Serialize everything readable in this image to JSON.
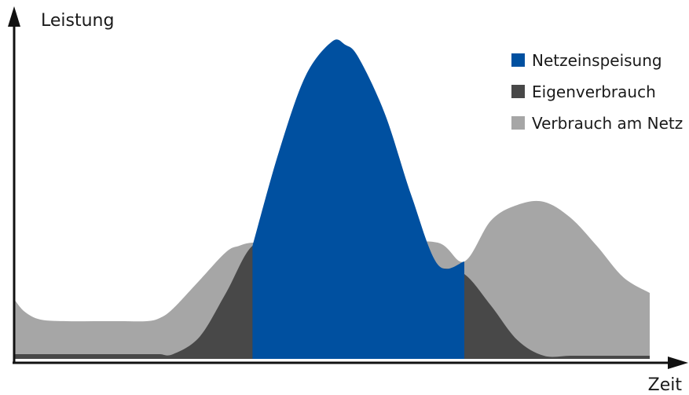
{
  "chart_data": {
    "type": "area",
    "xlabel": "Zeit",
    "ylabel": "Leistung",
    "xlim": [
      0,
      24
    ],
    "ylim": [
      0,
      100
    ],
    "grid": false,
    "legend_position": "top-right",
    "tick_labels": false,
    "series": [
      {
        "name": "Netzeinspeisung",
        "color": "#0050a0",
        "x": [
          9.0,
          10.0,
          11.0,
          12.0,
          12.5,
          13.0,
          14.0,
          15.0,
          16.0,
          17.0
        ],
        "y": [
          36,
          66,
          90,
          101,
          100,
          96,
          78,
          52,
          30,
          31
        ]
      },
      {
        "name": "Eigenverbrauch",
        "color": "#484848",
        "x": [
          0,
          1,
          2,
          3,
          4,
          5,
          5.5,
          6,
          7,
          8,
          9,
          10,
          11,
          12,
          12.5,
          13,
          14,
          15,
          16,
          17,
          18,
          19,
          20,
          21,
          22,
          23,
          24
        ],
        "y": [
          1.5,
          1.5,
          1.5,
          1.5,
          1.5,
          1.5,
          1.5,
          1.5,
          7,
          21,
          36,
          35,
          35,
          36,
          36,
          35,
          32,
          30,
          29,
          27,
          17,
          6,
          1,
          1,
          1,
          1,
          1
        ]
      },
      {
        "name": "Verbrauch am Netz",
        "color": "#a6a6a6",
        "x": [
          0,
          0.4,
          1,
          2,
          3,
          4,
          5,
          5.5,
          6,
          7,
          8,
          8.5,
          9,
          10,
          12,
          14,
          16,
          17,
          18,
          19,
          20,
          21,
          22,
          23,
          24
        ],
        "y": [
          19,
          15,
          12.5,
          12,
          12,
          12,
          12,
          13,
          16,
          25,
          34,
          36,
          37,
          37,
          37,
          37,
          37,
          31,
          44,
          49,
          50,
          45,
          36,
          26,
          21
        ]
      }
    ]
  }
}
